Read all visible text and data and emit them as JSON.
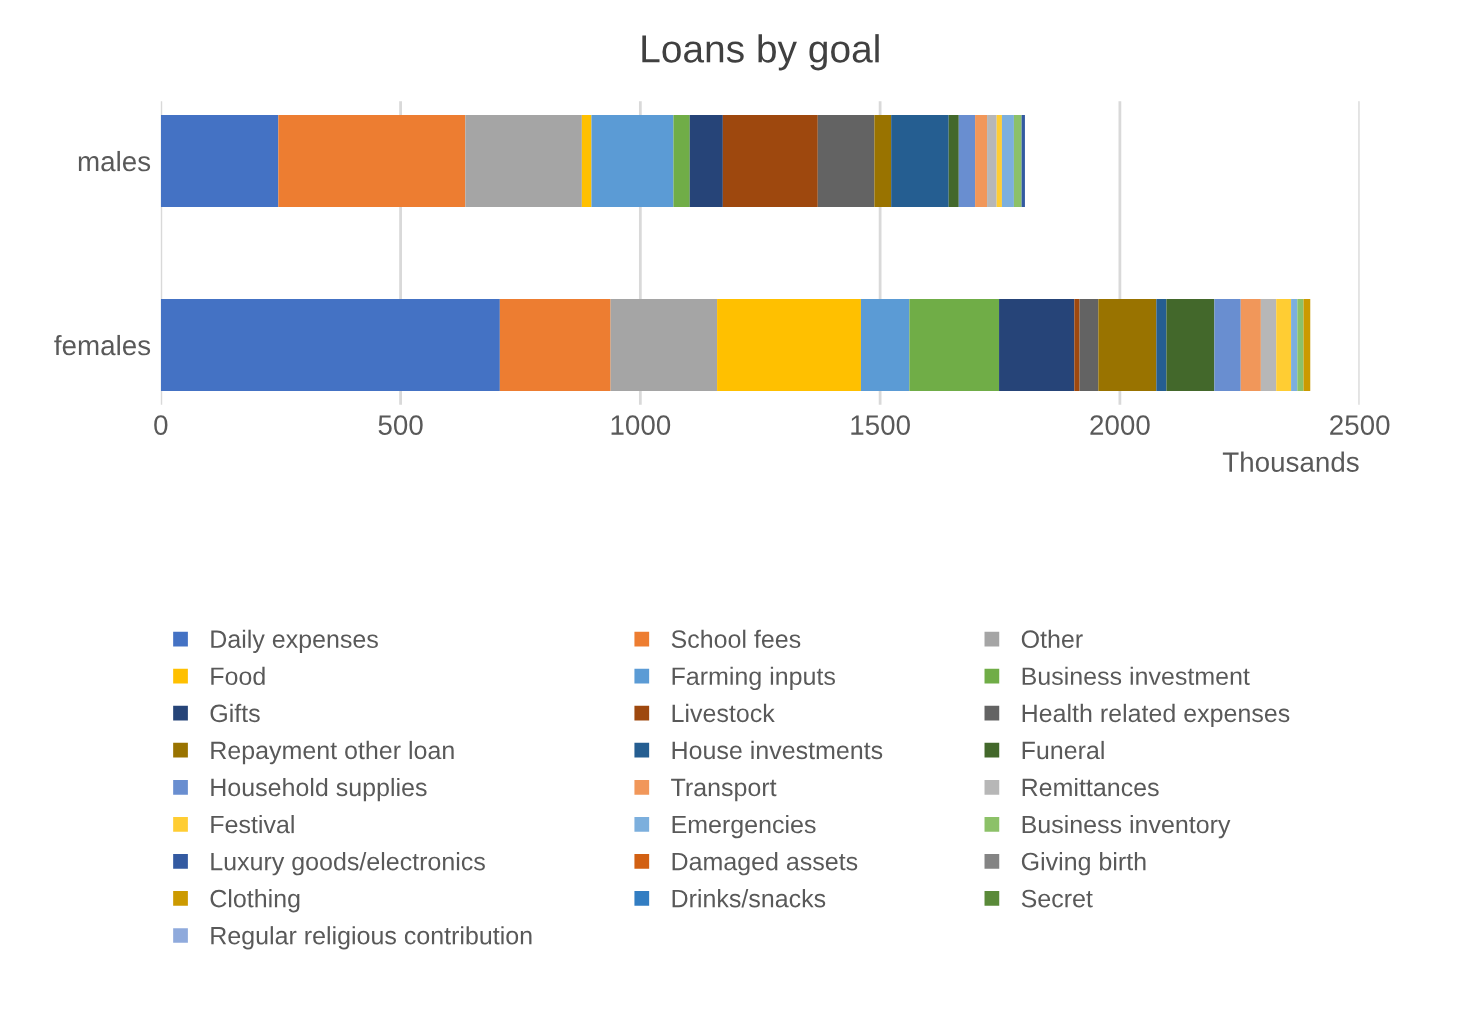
{
  "chart_data": {
    "type": "bar",
    "title": "Loans by goal",
    "xlabel": "Thousands",
    "orientation": "horizontal",
    "stacked": true,
    "categories": [
      "males",
      "females"
    ],
    "xlim": [
      0,
      2500
    ],
    "xticks": [
      0,
      500,
      1000,
      1500,
      2000,
      2500
    ],
    "grid": "x",
    "legend": "bottom",
    "series": [
      {
        "name": "Daily expenses",
        "color": "#4472c4",
        "values": [
          245,
          707
        ]
      },
      {
        "name": "School fees",
        "color": "#ed7d31",
        "values": [
          390,
          231
        ]
      },
      {
        "name": "Other",
        "color": "#a5a5a5",
        "values": [
          243,
          222
        ]
      },
      {
        "name": "Food",
        "color": "#ffc000",
        "values": [
          20,
          300
        ]
      },
      {
        "name": "Farming inputs",
        "color": "#5b9bd5",
        "values": [
          171,
          101
        ]
      },
      {
        "name": "Business investment",
        "color": "#70ad47",
        "values": [
          34,
          187
        ]
      },
      {
        "name": "Gifts",
        "color": "#264478",
        "values": [
          69,
          157
        ]
      },
      {
        "name": "Livestock",
        "color": "#9e480e",
        "values": [
          198,
          11
        ]
      },
      {
        "name": "Health related expenses",
        "color": "#636363",
        "values": [
          118,
          39
        ]
      },
      {
        "name": "Repayment other loan",
        "color": "#997300",
        "values": [
          35,
          121
        ]
      },
      {
        "name": "House investments",
        "color": "#255e91",
        "values": [
          120,
          21
        ]
      },
      {
        "name": "Funeral",
        "color": "#43682b",
        "values": [
          21,
          100
        ]
      },
      {
        "name": "Household supplies",
        "color": "#698ed0",
        "values": [
          34,
          55
        ]
      },
      {
        "name": "Transport",
        "color": "#f1975a",
        "values": [
          25,
          42
        ]
      },
      {
        "name": "Remittances",
        "color": "#b7b7b7",
        "values": [
          20,
          32
        ]
      },
      {
        "name": "Festival",
        "color": "#ffcd33",
        "values": [
          11,
          31
        ]
      },
      {
        "name": "Emergencies",
        "color": "#7cafdd",
        "values": [
          25,
          13
        ]
      },
      {
        "name": "Business inventory",
        "color": "#8cc168",
        "values": [
          16,
          13
        ]
      },
      {
        "name": "Luxury goods/electronics",
        "color": "#335aa1",
        "values": [
          7,
          0
        ]
      },
      {
        "name": "Damaged assets",
        "color": "#d26012",
        "values": [
          0,
          0
        ]
      },
      {
        "name": "Giving birth",
        "color": "#848484",
        "values": [
          0,
          0
        ]
      },
      {
        "name": "Clothing",
        "color": "#cc9a00",
        "values": [
          0,
          14
        ]
      },
      {
        "name": "Drinks/snacks",
        "color": "#327dc2",
        "values": [
          0,
          0
        ]
      },
      {
        "name": "Secret",
        "color": "#5a8a39",
        "values": [
          0,
          0
        ]
      },
      {
        "name": "Regular religious contribution",
        "color": "#8faadc",
        "values": [
          0,
          0
        ]
      }
    ]
  }
}
